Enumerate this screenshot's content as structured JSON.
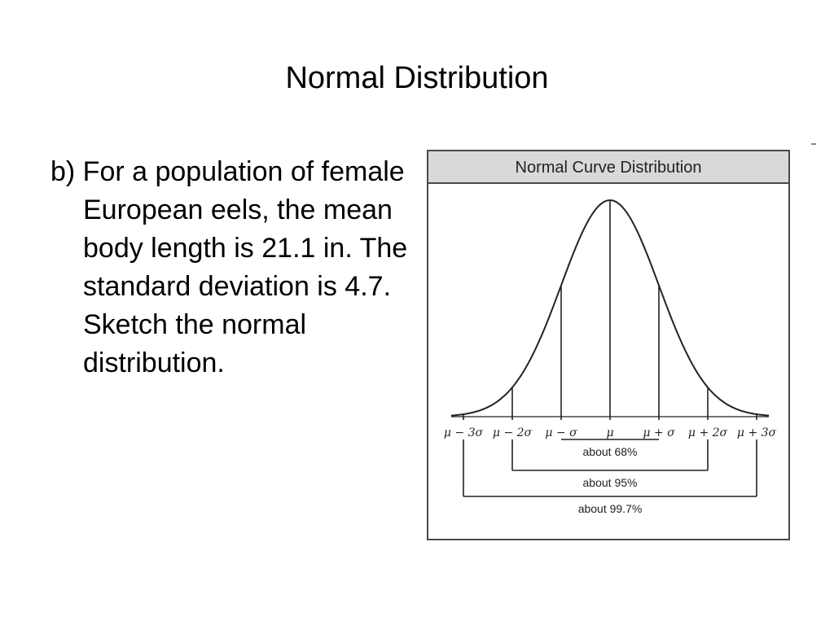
{
  "slide": {
    "title": "Normal Distribution",
    "body": "b) For a population of female European eels, the mean body length is 21.1 in.  The standard deviation is 4.7.  Sketch the normal distribution."
  },
  "figure": {
    "header": "Normal Curve Distribution",
    "header_color": "#d9d9d9",
    "line_color": "#222222",
    "tick_labels": [
      "μ − 3σ",
      "μ − 2σ",
      "μ − σ",
      "μ",
      "μ + σ",
      "μ + 2σ",
      "μ + 3σ"
    ],
    "ranges": [
      {
        "label": "about 68%",
        "from_sigma": -1,
        "to_sigma": 1
      },
      {
        "label": "about 95%",
        "from_sigma": -2,
        "to_sigma": 2
      },
      {
        "label": "about 99.7%",
        "from_sigma": -3,
        "to_sigma": 3
      }
    ]
  }
}
